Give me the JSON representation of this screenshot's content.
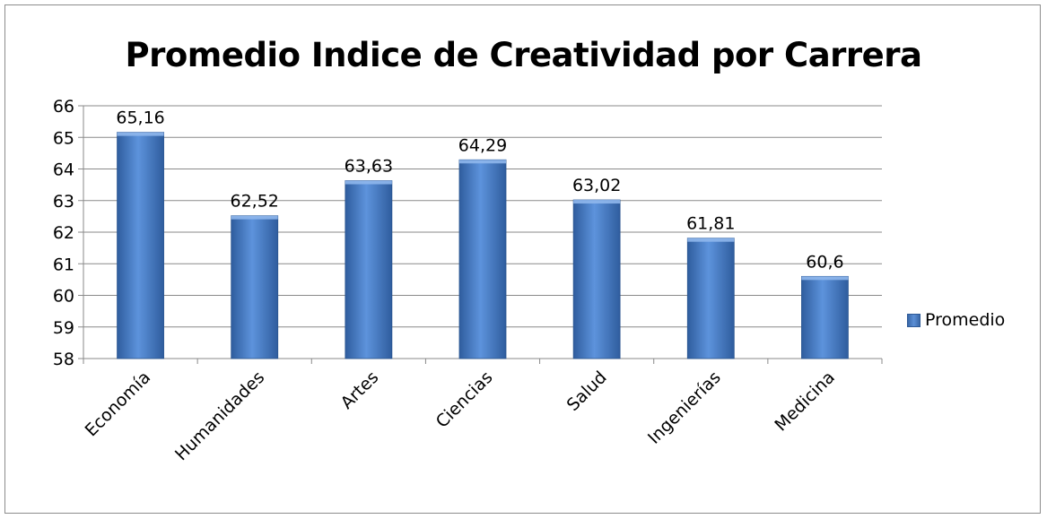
{
  "chart_data": {
    "type": "bar",
    "title": "Promedio Indice de Creatividad por Carrera",
    "categories": [
      "Economía",
      "Humanidades",
      "Artes",
      "Ciencias",
      "Salud",
      "Ingenierías",
      "Medicina"
    ],
    "series": [
      {
        "name": "Promedio",
        "values": [
          65.16,
          62.52,
          63.63,
          64.29,
          63.02,
          61.81,
          60.6
        ],
        "data_labels": [
          "65,16",
          "62,52",
          "63,63",
          "64,29",
          "63,02",
          "61,81",
          "60,6"
        ],
        "color": "#4a7fc9"
      }
    ],
    "y_ticks": [
      "58",
      "59",
      "60",
      "61",
      "62",
      "63",
      "64",
      "65",
      "66"
    ],
    "ylim": [
      58,
      66
    ],
    "grid": true,
    "legend_position": "right",
    "xlabel": "",
    "ylabel": ""
  }
}
